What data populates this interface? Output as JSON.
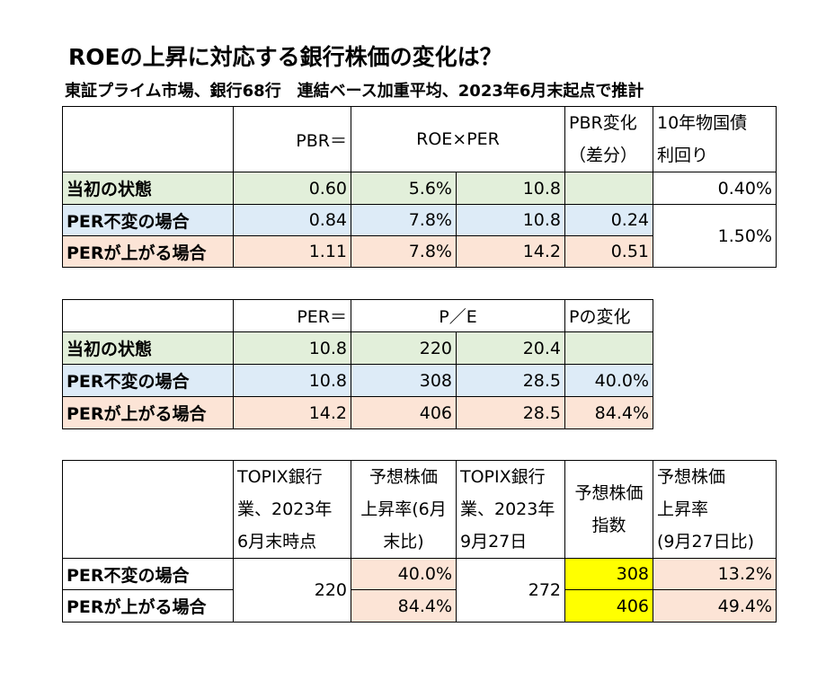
{
  "title": "ROEの上昇に対応する銀行株価の変化は？",
  "subtitle": "東証プライム市場、銀行68行　連結ベース加重平均、2023年6月末起点で推計",
  "table1": {
    "h_pbr": "PBR＝",
    "h_roe_per": "ROE×PER",
    "h_pbr_change_1": "PBR変化",
    "h_pbr_change_2": "（差分）",
    "h_bond_1": "10年物国債",
    "h_bond_2": "利回り",
    "rows": [
      {
        "label": "当初の状態",
        "pbr": "0.60",
        "roe": "5.6%",
        "per": "10.8",
        "change": "",
        "bond": "0.40%"
      },
      {
        "label": "PER不変の場合",
        "pbr": "0.84",
        "roe": "7.8%",
        "per": "10.8",
        "change": "0.24",
        "bond": "1.50%"
      },
      {
        "label": "PERが上がる場合",
        "pbr": "1.11",
        "roe": "7.8%",
        "per": "14.2",
        "change": "0.51"
      }
    ]
  },
  "table2": {
    "h_per": "PER＝",
    "h_pe": "P／E",
    "h_pchange": "Pの変化",
    "rows": [
      {
        "label": "当初の状態",
        "per": "10.8",
        "p": "220",
        "e": "20.4",
        "change": ""
      },
      {
        "label": "PER不変の場合",
        "per": "10.8",
        "p": "308",
        "e": "28.5",
        "change": "40.0%"
      },
      {
        "label": "PERが上がる場合",
        "per": "14.2",
        "p": "406",
        "e": "28.5",
        "change": "84.4%"
      }
    ]
  },
  "table3": {
    "h1": [
      "TOPIX銀行",
      "業、2023年",
      "6月末時点"
    ],
    "h2": [
      "予想株価",
      "上昇率(6月",
      "末比)"
    ],
    "h3": [
      "TOPIX銀行",
      "業、2023年",
      "9月27日"
    ],
    "h4": [
      "予想株価",
      "指数"
    ],
    "h5": [
      "予想株価",
      "上昇率",
      "(9月27日比)"
    ],
    "june_value": "220",
    "sept_value": "272",
    "rows": [
      {
        "label": "PER不変の場合",
        "rise_june": "40.0%",
        "index": "308",
        "rise_sept": "13.2%"
      },
      {
        "label": "PERが上がる場合",
        "rise_june": "84.4%",
        "index": "406",
        "rise_sept": "49.4%"
      }
    ]
  }
}
